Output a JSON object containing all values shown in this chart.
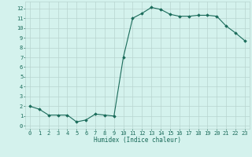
{
  "x": [
    0,
    1,
    2,
    3,
    4,
    5,
    6,
    7,
    8,
    9,
    10,
    11,
    12,
    13,
    14,
    15,
    16,
    17,
    18,
    19,
    20,
    21,
    22,
    23
  ],
  "y": [
    2.0,
    1.7,
    1.1,
    1.1,
    1.1,
    0.4,
    0.6,
    1.2,
    1.1,
    1.0,
    7.0,
    11.0,
    11.5,
    12.1,
    11.9,
    11.4,
    11.2,
    11.2,
    11.3,
    11.3,
    11.2,
    10.2,
    9.5,
    8.7
  ],
  "line_color": "#1a6b5a",
  "marker": "D",
  "marker_size": 1.8,
  "bg_color": "#d4f2ed",
  "grid_color": "#b8d4cf",
  "xlabel": "Humidex (Indice chaleur)",
  "xlabel_fontsize": 5.5,
  "tick_fontsize": 5,
  "ylim": [
    -0.3,
    12.7
  ],
  "xlim": [
    -0.5,
    23.5
  ],
  "yticks": [
    0,
    1,
    2,
    3,
    4,
    5,
    6,
    7,
    8,
    9,
    10,
    11,
    12
  ],
  "xticks": [
    0,
    1,
    2,
    3,
    4,
    5,
    6,
    7,
    8,
    9,
    10,
    11,
    12,
    13,
    14,
    15,
    16,
    17,
    18,
    19,
    20,
    21,
    22,
    23
  ]
}
